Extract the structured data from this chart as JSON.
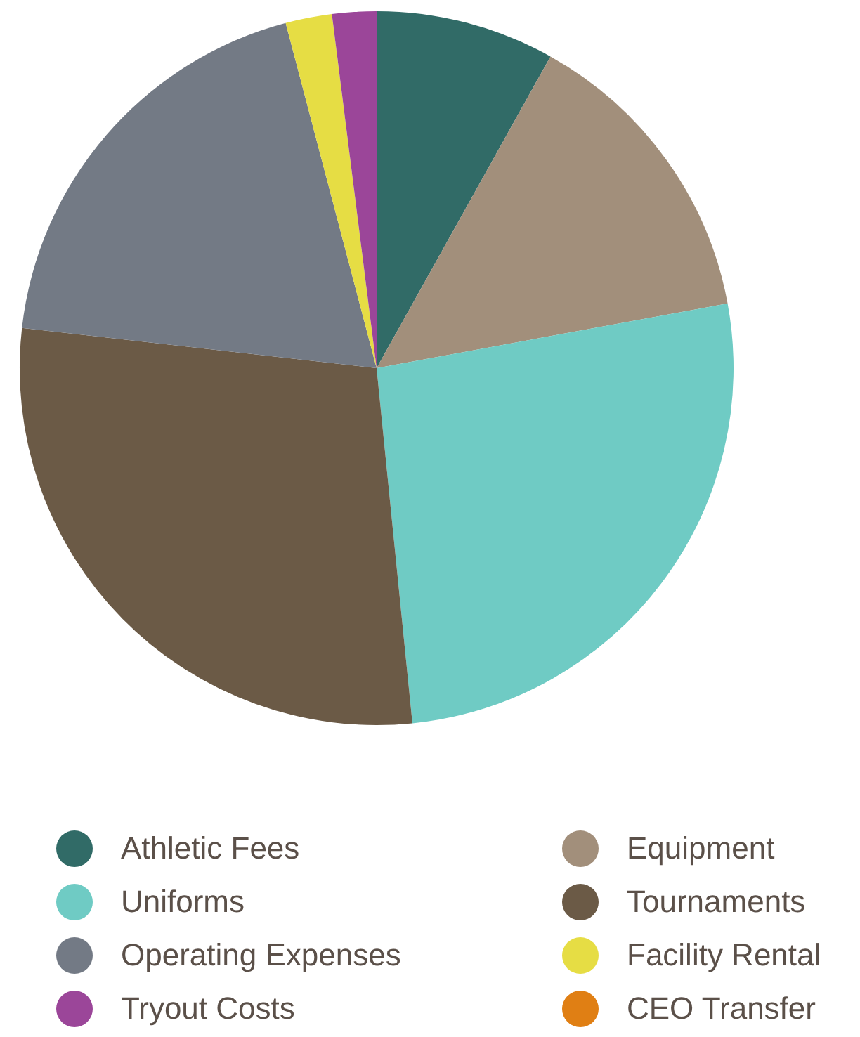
{
  "chart_data": {
    "type": "pie",
    "categories": [
      "Athletic Fees",
      "Equipment",
      "Uniforms",
      "Tournaments",
      "Operating Expenses",
      "Facility Rental",
      "Tryout Costs",
      "CEO Transfer"
    ],
    "values": [
      8.1,
      14.0,
      26.3,
      28.4,
      19.1,
      2.1,
      2.0,
      0
    ],
    "colors": [
      "#316b67",
      "#a28f7b",
      "#6fcbc4",
      "#6b5a46",
      "#737a85",
      "#e6dd44",
      "#9b4699",
      "#e07f14"
    ],
    "legend": "bottom"
  }
}
